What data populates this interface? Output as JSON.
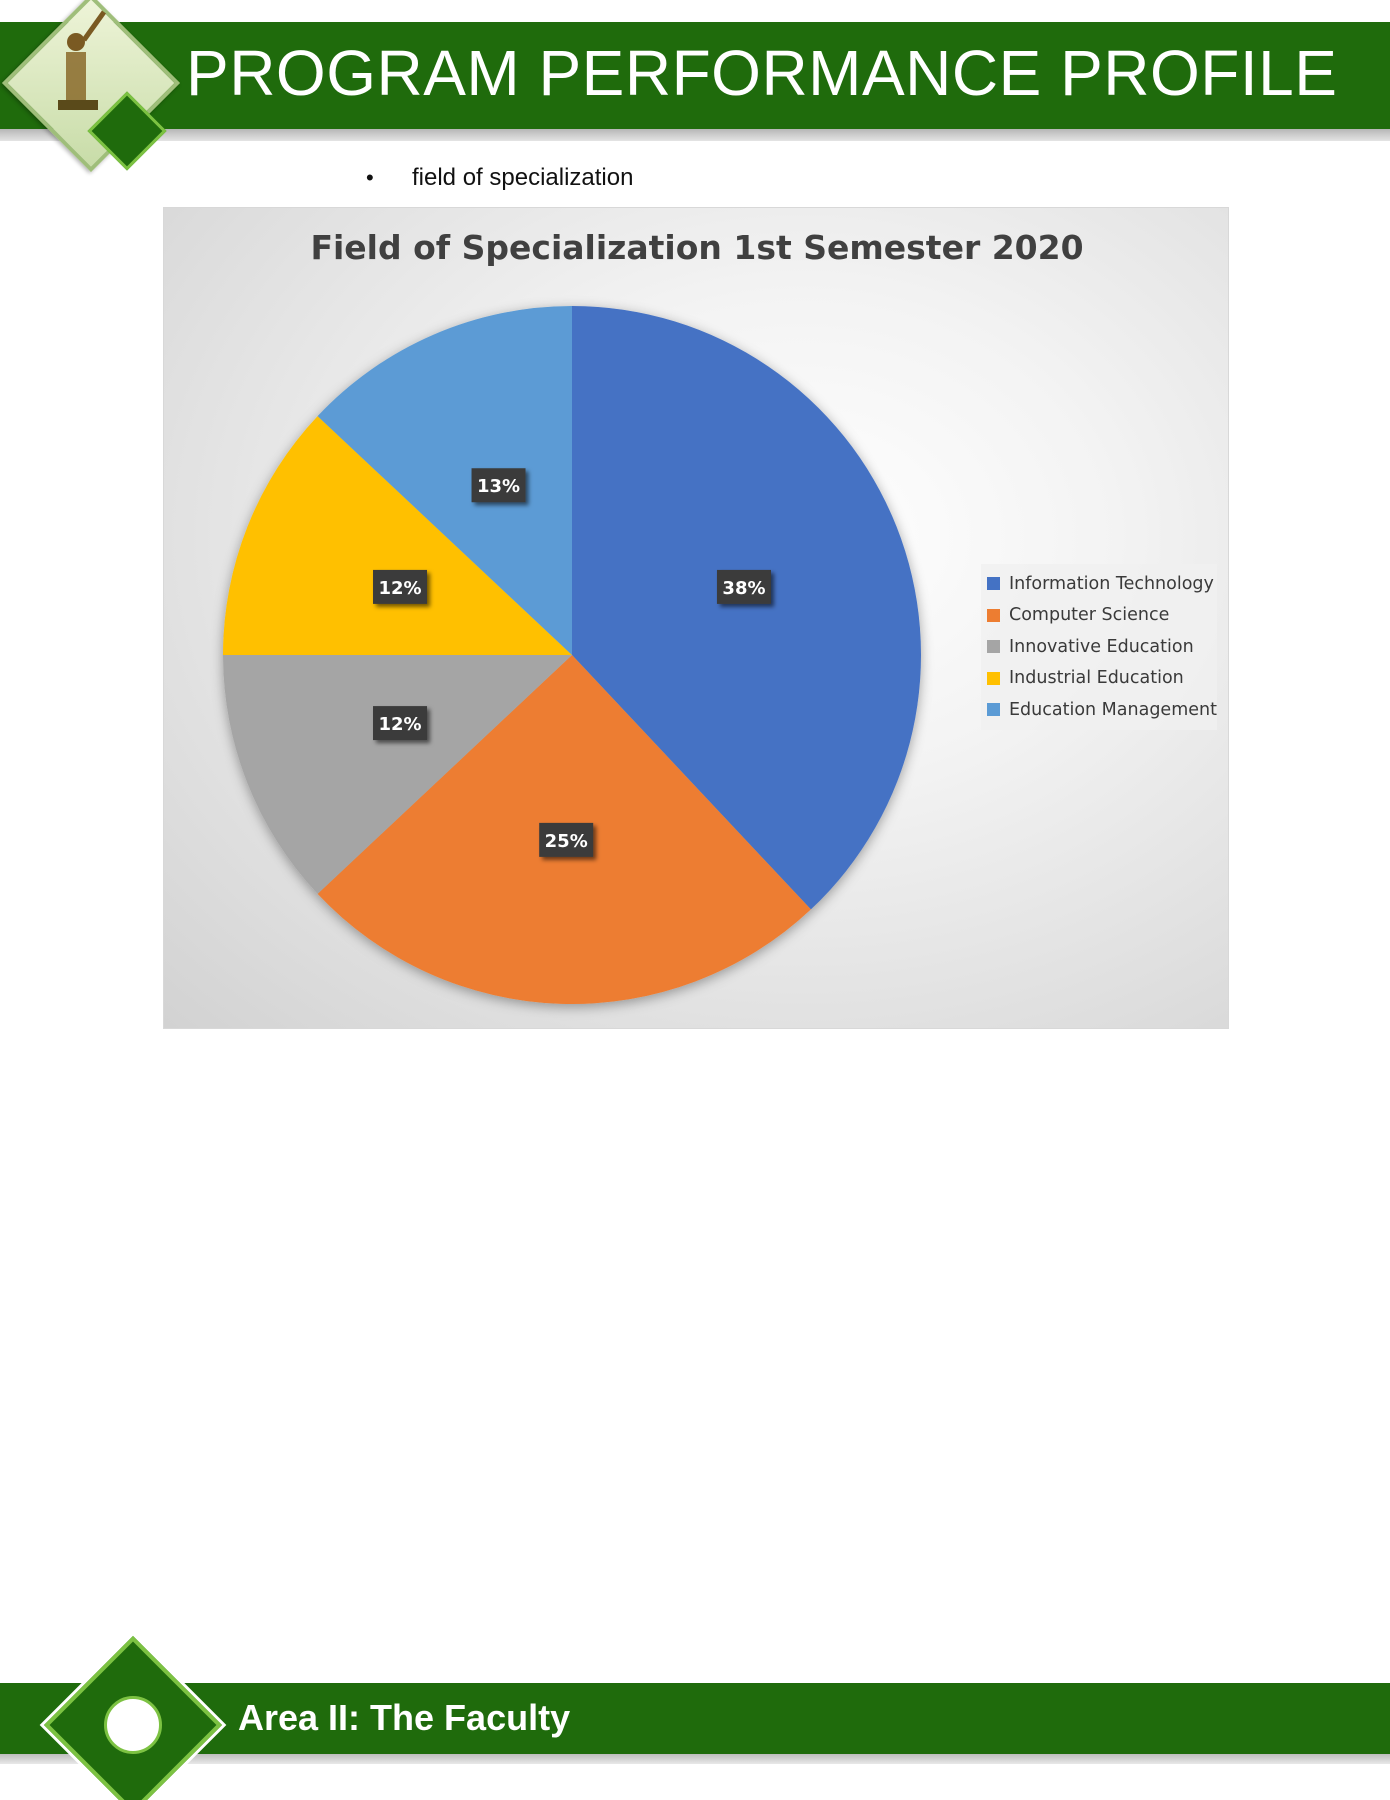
{
  "header": {
    "title": "PROGRAM PERFORMANCE PROFILE"
  },
  "bullet": {
    "marker": "•",
    "text": "field of specialization"
  },
  "chart_data": {
    "type": "pie",
    "title": "Field of Specialization 1st Semester 2020",
    "categories": [
      "Information Technology",
      "Computer Science",
      "Innovative Education",
      "Industrial Education",
      "Education Management"
    ],
    "values": [
      38,
      25,
      12,
      12,
      13
    ],
    "data_labels": [
      "38%",
      "25%",
      "12%",
      "12%",
      "13%"
    ],
    "colors": [
      "#4472c4",
      "#ed7d31",
      "#a5a5a5",
      "#ffc000",
      "#5b9bd5"
    ],
    "start_angle_deg": 0,
    "direction": "clockwise",
    "legend_position": "right"
  },
  "footer": {
    "text": "Area II: The Faculty"
  }
}
